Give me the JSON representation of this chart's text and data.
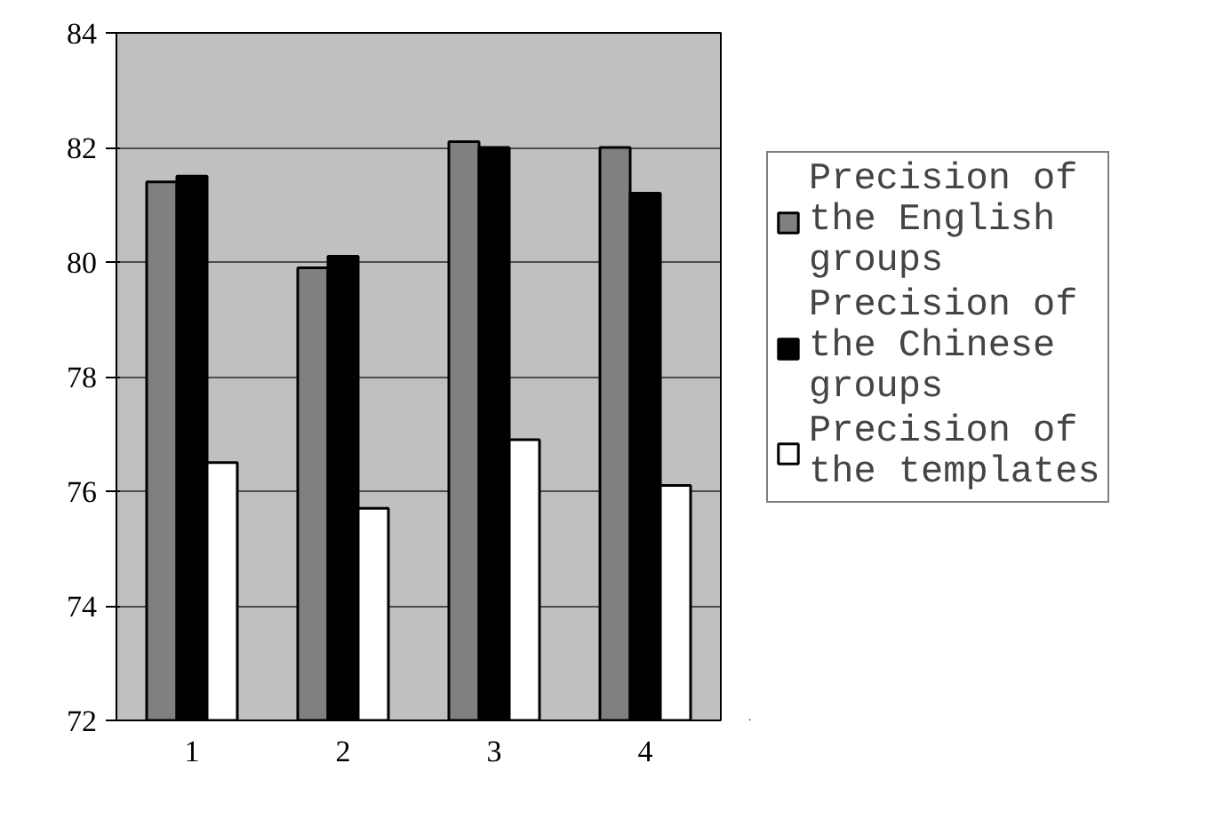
{
  "chart_data": {
    "type": "bar",
    "categories": [
      "1",
      "2",
      "3",
      "4"
    ],
    "series": [
      {
        "name": "Precision of the English groups",
        "color": "#808080",
        "values": [
          81.4,
          79.9,
          82.1,
          82.0
        ]
      },
      {
        "name": "Precision of the Chinese groups",
        "color": "#000000",
        "values": [
          81.5,
          80.1,
          82.0,
          81.2
        ]
      },
      {
        "name": "Precision of the templates",
        "color": "#ffffff",
        "values": [
          76.5,
          75.7,
          76.9,
          76.1
        ]
      }
    ],
    "ylim": [
      72,
      84
    ],
    "yticks": [
      72,
      74,
      76,
      78,
      80,
      82,
      84
    ],
    "grid": "y",
    "legend": "right"
  }
}
